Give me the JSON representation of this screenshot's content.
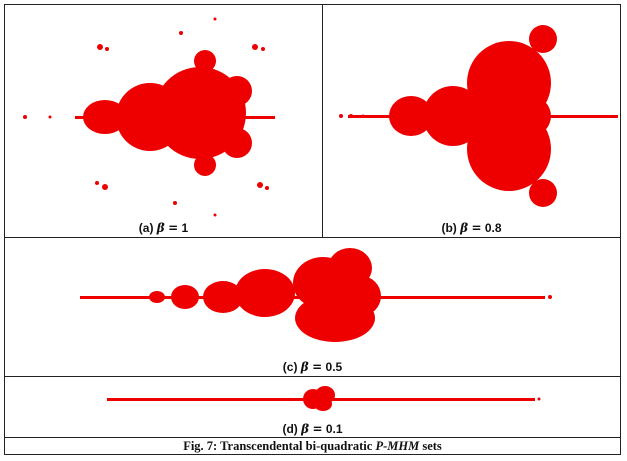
{
  "panels": [
    {
      "id": "a",
      "tag": "(a)",
      "symbol": "β",
      "op": "=",
      "value": "1"
    },
    {
      "id": "b",
      "tag": "(b)",
      "symbol": "β",
      "op": "=",
      "value": "0.8"
    },
    {
      "id": "c",
      "tag": "(c)",
      "symbol": "β",
      "op": "=",
      "value": "0.5"
    },
    {
      "id": "d",
      "tag": "(d)",
      "symbol": "β",
      "op": "=",
      "value": "0.1"
    }
  ],
  "caption": {
    "prefix": "Fig. 7: Transcendental bi-quadratic ",
    "emph": "P-MHM",
    "suffix": " sets"
  },
  "colors": {
    "fractal": "#ee0000",
    "border": "#222222"
  }
}
